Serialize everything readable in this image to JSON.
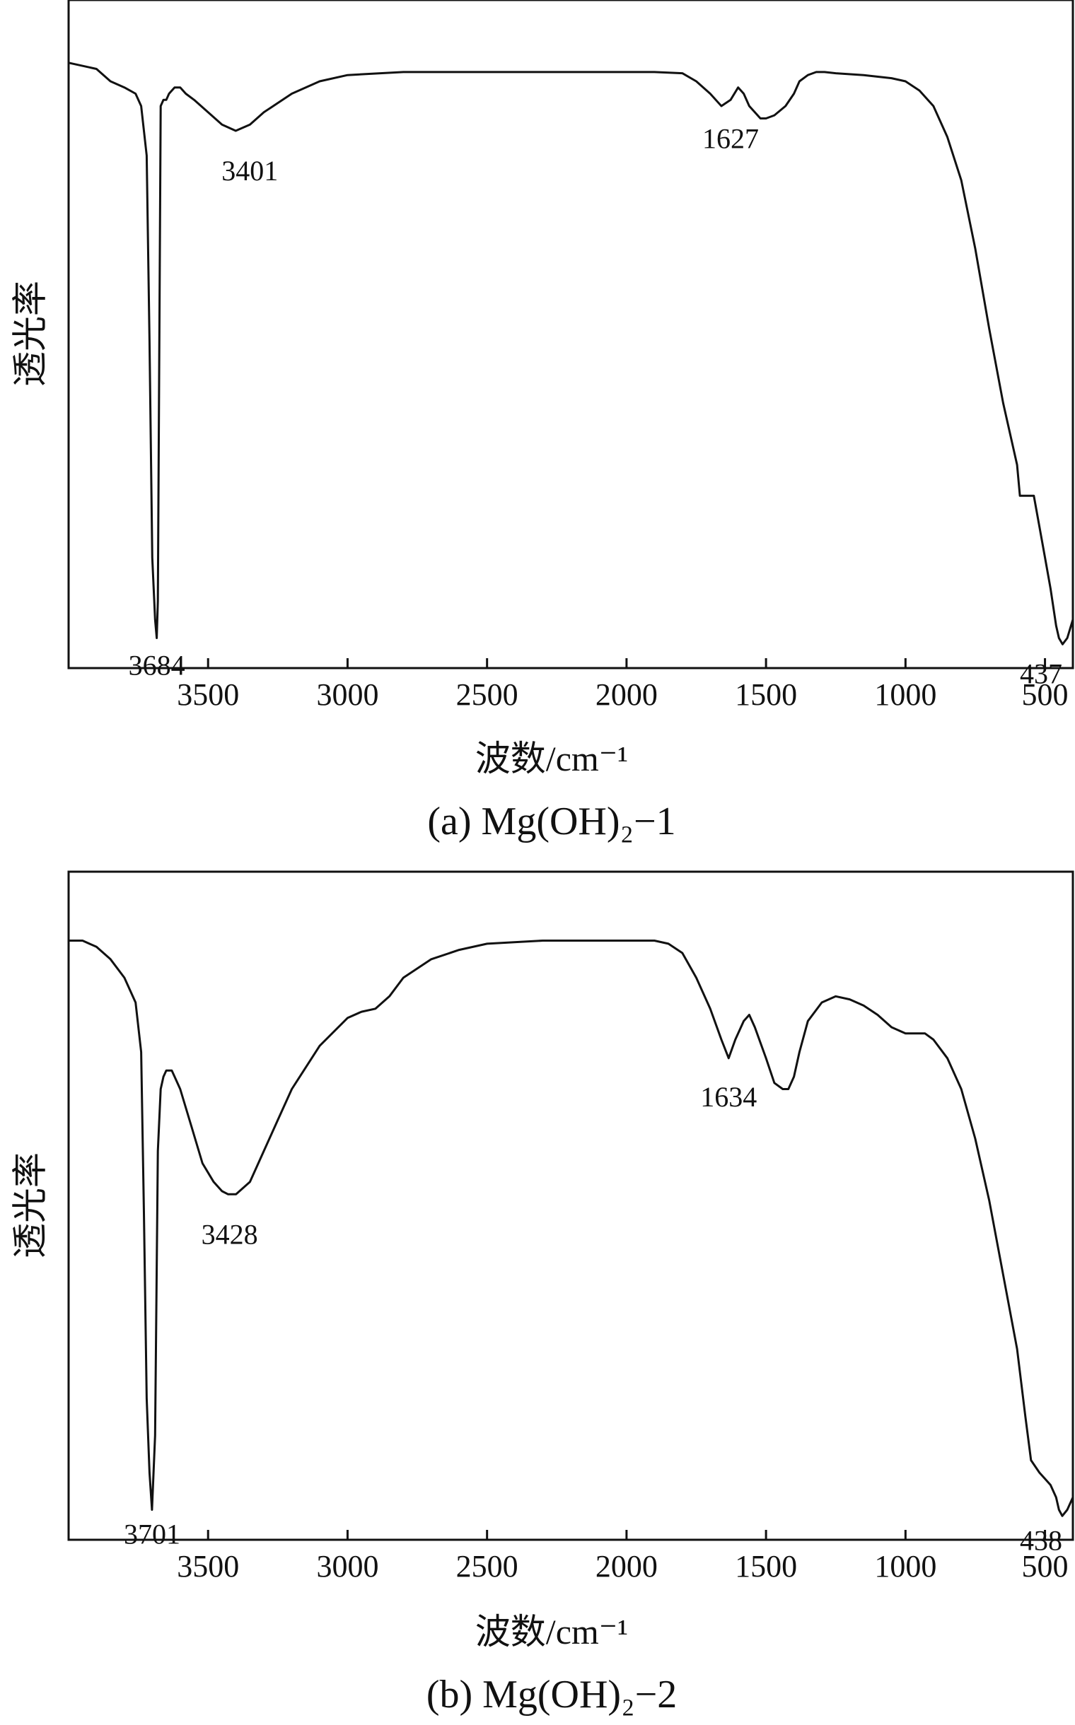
{
  "chart_data": [
    {
      "type": "line",
      "caption": "(a) Mg(OH)₂−1",
      "xlabel": "波数/cm⁻¹",
      "ylabel": "透光率",
      "xlim": [
        4000,
        400
      ],
      "ylim": [
        0,
        100
      ],
      "x_ticks": [
        3500,
        3000,
        2500,
        2000,
        1500,
        1000,
        500
      ],
      "grid": false,
      "series": [
        {
          "x": [
            4000,
            3900,
            3850,
            3800,
            3760,
            3740,
            3720,
            3710,
            3700,
            3690,
            3684,
            3680,
            3670,
            3660,
            3650,
            3640,
            3620,
            3600,
            3580,
            3550,
            3500,
            3450,
            3401,
            3350,
            3300,
            3200,
            3100,
            3000,
            2800,
            2600,
            2400,
            2200,
            2000,
            1900,
            1800,
            1750,
            1700,
            1660,
            1627,
            1600,
            1580,
            1560,
            1540,
            1520,
            1500,
            1470,
            1430,
            1400,
            1380,
            1350,
            1320,
            1290,
            1250,
            1150,
            1050,
            1000,
            950,
            900,
            850,
            800,
            750,
            700,
            650,
            600,
            590,
            570,
            560,
            540,
            520,
            500,
            480,
            460,
            450,
            437,
            420,
            400
          ],
          "y": [
            95,
            94,
            92,
            91,
            90,
            88,
            80,
            50,
            15,
            5,
            2,
            8,
            88,
            89,
            89,
            90,
            91,
            91,
            90,
            89,
            87,
            85,
            84,
            85,
            87,
            90,
            92,
            93,
            93.5,
            93.5,
            93.5,
            93.5,
            93.5,
            93.5,
            93.3,
            92,
            90,
            88,
            89,
            91,
            90,
            88,
            87,
            86,
            86,
            86.5,
            88,
            90,
            92,
            93,
            93.5,
            93.5,
            93.3,
            93,
            92.5,
            92,
            90.5,
            88,
            83,
            76,
            65,
            52,
            40,
            30,
            25,
            25,
            25,
            25,
            20,
            15,
            10,
            4,
            2,
            1,
            2,
            5
          ]
        }
      ],
      "annotations": [
        {
          "text": "3684",
          "x": 3684
        },
        {
          "text": "3401",
          "x": 3401
        },
        {
          "text": "1627",
          "x": 1627
        },
        {
          "text": "437",
          "x": 437
        }
      ]
    },
    {
      "type": "line",
      "caption": "(b) Mg(OH)₂−2",
      "xlabel": "波数/cm⁻¹",
      "ylabel": "透光率",
      "xlim": [
        4000,
        400
      ],
      "ylim": [
        0,
        100
      ],
      "x_ticks": [
        3500,
        3000,
        2500,
        2000,
        1500,
        1000,
        500
      ],
      "grid": false,
      "series": [
        {
          "x": [
            4000,
            3950,
            3900,
            3850,
            3800,
            3760,
            3740,
            3730,
            3720,
            3710,
            3701,
            3690,
            3680,
            3670,
            3660,
            3650,
            3630,
            3620,
            3600,
            3560,
            3520,
            3480,
            3450,
            3428,
            3400,
            3350,
            3300,
            3250,
            3200,
            3100,
            3000,
            2950,
            2900,
            2850,
            2800,
            2700,
            2600,
            2500,
            2300,
            2100,
            1900,
            1850,
            1800,
            1750,
            1700,
            1660,
            1634,
            1610,
            1580,
            1560,
            1540,
            1500,
            1470,
            1440,
            1420,
            1400,
            1380,
            1350,
            1300,
            1250,
            1200,
            1150,
            1100,
            1050,
            1000,
            960,
            930,
            900,
            850,
            800,
            750,
            700,
            650,
            600,
            570,
            550,
            520,
            500,
            480,
            460,
            450,
            438,
            420,
            400
          ],
          "y": [
            94,
            94,
            93,
            91,
            88,
            84,
            76,
            50,
            20,
            8,
            2,
            14,
            60,
            70,
            72,
            73,
            73,
            72,
            70,
            64,
            58,
            55,
            53.5,
            53,
            53,
            55,
            60,
            65,
            70,
            77,
            81.5,
            82.5,
            83,
            85,
            88,
            91,
            92.5,
            93.5,
            94,
            94,
            94,
            93.5,
            92,
            88,
            83,
            78,
            75,
            78,
            81,
            82,
            80,
            75,
            71,
            70,
            70,
            72,
            76,
            81,
            84,
            85,
            84.5,
            83.5,
            82,
            80,
            79,
            79,
            79,
            78,
            75,
            70,
            62,
            52,
            40,
            28,
            17,
            10,
            8,
            7,
            6,
            4,
            2,
            1,
            2,
            4
          ]
        }
      ],
      "annotations": [
        {
          "text": "3701",
          "x": 3701
        },
        {
          "text": "3428",
          "x": 3428
        },
        {
          "text": "1634",
          "x": 1634
        },
        {
          "text": "438",
          "x": 438
        }
      ]
    }
  ]
}
